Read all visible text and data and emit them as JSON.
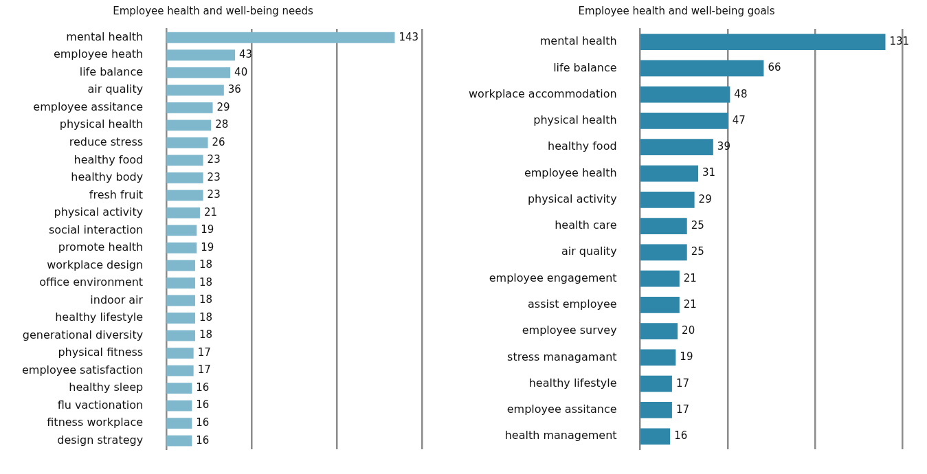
{
  "chart_data": [
    {
      "type": "bar",
      "orientation": "horizontal",
      "title": "Employee health and well-being needs",
      "categories": [
        "mental health",
        "employee heath",
        "life balance",
        "air quality",
        "employee assitance",
        "physical health",
        "reduce stress",
        "healthy food",
        "healthy body",
        "fresh fruit",
        "physical activity",
        "social interaction",
        "promote health",
        "workplace design",
        "office environment",
        "indoor air",
        "healthy lifestyle",
        "generational diversity",
        "physical fitness",
        "employee satisfaction",
        "healthy sleep",
        "flu vactionation",
        "fitness workplace",
        "design strategy"
      ],
      "values": [
        143,
        43,
        40,
        36,
        29,
        28,
        26,
        23,
        23,
        23,
        21,
        19,
        19,
        18,
        18,
        18,
        18,
        18,
        17,
        17,
        16,
        16,
        16,
        16
      ],
      "color": "#7fb8cd",
      "xlim": [
        0,
        160
      ],
      "xticks": [
        {
          "value": 53.3,
          "label": null
        },
        {
          "value": 106.7,
          "label": null
        },
        {
          "value": 160,
          "label": null
        }
      ],
      "grid": "x",
      "tick_labels": "y",
      "data_labels": true
    },
    {
      "type": "bar",
      "orientation": "horizontal",
      "title": "Employee health and well-being goals",
      "categories": [
        "mental health",
        "life balance",
        "workplace accommodation",
        "physical health",
        "healthy food",
        "employee health",
        "physical activity",
        "health care",
        "air quality",
        "employee engagement",
        "assist employee",
        "employee survey",
        "stress managamant",
        "healthy lifestyle",
        "employee assitance",
        "health management"
      ],
      "values": [
        131,
        66,
        48,
        47,
        39,
        31,
        29,
        25,
        25,
        21,
        21,
        20,
        19,
        17,
        17,
        16
      ],
      "color": "#2e86a8",
      "xlim": [
        0,
        140
      ],
      "xticks": [
        {
          "value": 46.7,
          "label": null
        },
        {
          "value": 93.3,
          "label": null
        },
        {
          "value": 140,
          "label": null
        }
      ],
      "grid": "x",
      "tick_labels": "y",
      "data_labels": true
    }
  ]
}
